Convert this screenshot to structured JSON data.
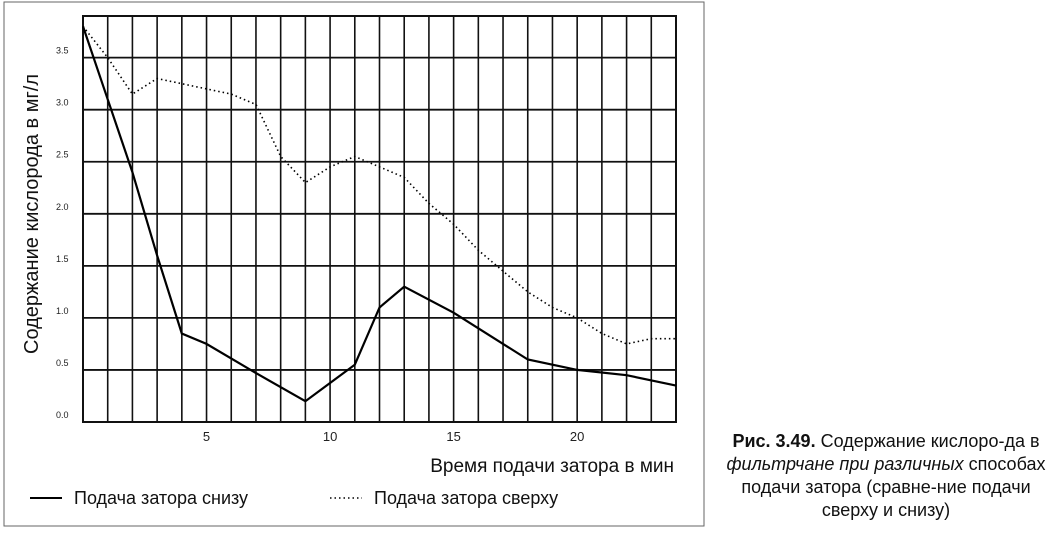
{
  "chart_data": {
    "type": "line",
    "xlabel": "Время подачи затора в мин",
    "ylabel": "Содержание кислорода в мг/л",
    "xlim": [
      0,
      24
    ],
    "ylim": [
      0,
      3.9
    ],
    "x_ticks": [
      5,
      10,
      15,
      20
    ],
    "x_tick_labels": [
      "5",
      "10",
      "15",
      "20"
    ],
    "y_ticks": [
      0,
      0.5,
      1.0,
      1.5,
      2.0,
      2.5,
      3.0,
      3.5
    ],
    "y_tick_labels": [
      "0.0",
      "0.5",
      "1.0",
      "1.5",
      "2.0",
      "2.5",
      "3.0",
      "3.5"
    ],
    "grid": true,
    "legend_position": "bottom",
    "series": [
      {
        "name": "Подача затора снизу",
        "style": "solid",
        "x": [
          0,
          1,
          2,
          3,
          4,
          5,
          7,
          9,
          11,
          12,
          13,
          15,
          18,
          20,
          22,
          24
        ],
        "y": [
          3.8,
          3.1,
          2.4,
          1.6,
          0.85,
          0.75,
          0.47,
          0.2,
          0.55,
          1.1,
          1.3,
          1.05,
          0.6,
          0.5,
          0.45,
          0.35
        ]
      },
      {
        "name": "Подача затора сверху",
        "style": "dotted",
        "x": [
          0,
          1,
          2,
          3,
          4,
          5,
          6,
          7,
          8,
          9,
          10,
          11,
          12,
          13,
          14,
          15,
          16,
          17,
          18,
          19,
          20,
          21,
          22,
          23,
          24
        ],
        "y": [
          3.8,
          3.5,
          3.15,
          3.3,
          3.25,
          3.2,
          3.15,
          3.05,
          2.55,
          2.3,
          2.45,
          2.55,
          2.45,
          2.35,
          2.1,
          1.9,
          1.65,
          1.45,
          1.25,
          1.1,
          1.0,
          0.85,
          0.75,
          0.8,
          0.8
        ]
      }
    ]
  },
  "caption": {
    "number": "Рис. 3.49.",
    "text_part1": "Содержание кислоро-да в ",
    "text_italic": "фильтрчане при различных",
    "text_part2": "способах подачи затора (сравне-ние подачи сверху и снизу)"
  }
}
